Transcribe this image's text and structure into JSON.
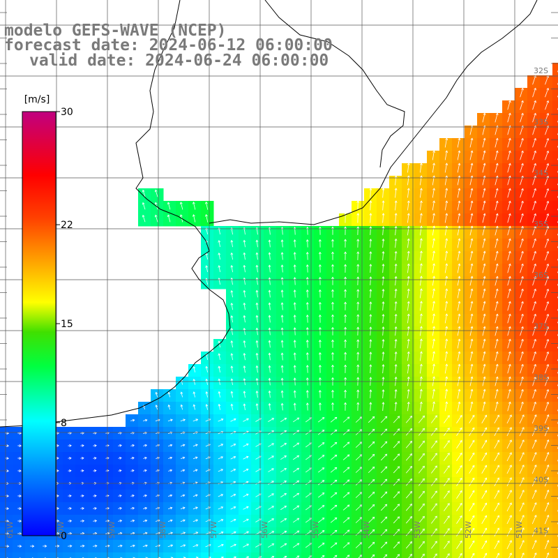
{
  "title": {
    "model": "modelo GEFS-WAVE (NCEP)",
    "forecast": "forecast date: 2024-06-12 06:00:00",
    "valid": "valid date: 2024-06-24 06:00:00"
  },
  "colorbar": {
    "unit": "[m/s]",
    "ticks": [
      "30",
      "22",
      "15",
      "8",
      "0"
    ],
    "tick_values": [
      30,
      22,
      15,
      8,
      0
    ],
    "colors": [
      "#0000ff",
      "#00a0ff",
      "#00ffff",
      "#00ff60",
      "#00e000",
      "#a0ff00",
      "#ffff00",
      "#ffa000",
      "#ff4000",
      "#ff0000",
      "#d00060",
      "#c00080"
    ]
  },
  "lat_labels": [
    "32S",
    "33S",
    "34S",
    "35S",
    "36S",
    "37S",
    "38S",
    "39S",
    "40S",
    "41S"
  ],
  "lat_values": [
    32,
    33,
    34,
    35,
    36,
    37,
    38,
    39,
    40,
    41
  ],
  "lon_labels": [
    "61W",
    "60W",
    "59W",
    "58W",
    "57W",
    "56W",
    "55W",
    "54W",
    "53W",
    "52W",
    "51W"
  ],
  "lon_values": [
    61,
    60,
    59,
    58,
    57,
    56,
    55,
    54,
    53,
    52,
    51
  ]
}
